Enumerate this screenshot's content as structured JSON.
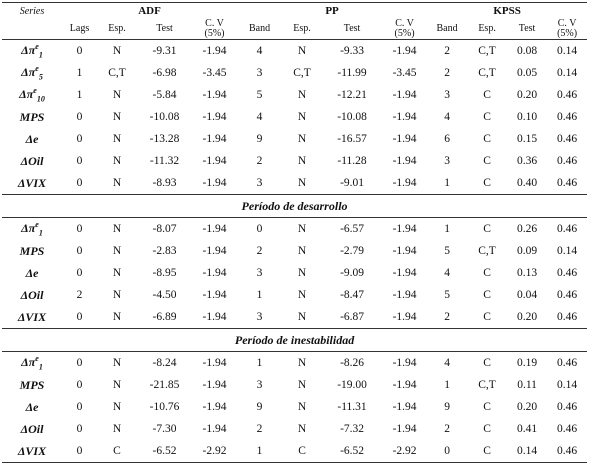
{
  "header": {
    "series": "Series",
    "groups": [
      "ADF",
      "PP",
      "KPSS"
    ],
    "columns": [
      "Lags",
      "Esp.",
      "Test",
      "C. V (5%)",
      "Band",
      "Esp.",
      "Test",
      "C. V (5%)",
      "Band",
      "Esp.",
      "Test",
      "C. V (5%)"
    ]
  },
  "sections": [
    {
      "rows": [
        {
          "series": {
            "base": "Δπ",
            "sup": "e",
            "sub": "1"
          },
          "cells": [
            "0",
            "N",
            "-9.31",
            "-1.94",
            "4",
            "N",
            "-9.33",
            "-1.94",
            "2",
            "C,T",
            "0.08",
            "0.14"
          ]
        },
        {
          "series": {
            "base": "Δπ",
            "sup": "e",
            "sub": "5"
          },
          "cells": [
            "1",
            "C,T",
            "-6.98",
            "-3.45",
            "3",
            "C,T",
            "-11.99",
            "-3.45",
            "2",
            "C,T",
            "0.05",
            "0.14"
          ]
        },
        {
          "series": {
            "base": "Δπ",
            "sup": "e",
            "sub": "10"
          },
          "cells": [
            "1",
            "N",
            "-5.84",
            "-1.94",
            "5",
            "N",
            "-12.21",
            "-1.94",
            "3",
            "C",
            "0.20",
            "0.46"
          ]
        },
        {
          "series": {
            "base": "MPS"
          },
          "cells": [
            "0",
            "N",
            "-10.08",
            "-1.94",
            "4",
            "N",
            "-10.08",
            "-1.94",
            "4",
            "C",
            "0.10",
            "0.46"
          ]
        },
        {
          "series": {
            "base": "Δe"
          },
          "cells": [
            "0",
            "N",
            "-13.28",
            "-1.94",
            "9",
            "N",
            "-16.57",
            "-1.94",
            "6",
            "C",
            "0.15",
            "0.46"
          ]
        },
        {
          "series": {
            "base": "ΔOil"
          },
          "cells": [
            "0",
            "N",
            "-11.32",
            "-1.94",
            "2",
            "N",
            "-11.28",
            "-1.94",
            "3",
            "C",
            "0.36",
            "0.46"
          ]
        },
        {
          "series": {
            "base": "ΔVIX"
          },
          "cells": [
            "0",
            "N",
            "-8.93",
            "-1.94",
            "3",
            "N",
            "-9.01",
            "-1.94",
            "1",
            "C",
            "0.40",
            "0.46"
          ]
        }
      ]
    },
    {
      "title": "Período de desarrollo",
      "rows": [
        {
          "series": {
            "base": "Δπ",
            "sup": "e",
            "sub": "1"
          },
          "cells": [
            "0",
            "N",
            "-8.07",
            "-1.94",
            "0",
            "N",
            "-6.57",
            "-1.94",
            "1",
            "C",
            "0.26",
            "0.46"
          ]
        },
        {
          "series": {
            "base": "MPS"
          },
          "cells": [
            "0",
            "N",
            "-2.83",
            "-1.94",
            "2",
            "N",
            "-2.79",
            "-1.94",
            "5",
            "C,T",
            "0.09",
            "0.14"
          ]
        },
        {
          "series": {
            "base": "Δe"
          },
          "cells": [
            "0",
            "N",
            "-8.95",
            "-1.94",
            "3",
            "N",
            "-9.09",
            "-1.94",
            "4",
            "C",
            "0.13",
            "0.46"
          ]
        },
        {
          "series": {
            "base": "ΔOil"
          },
          "cells": [
            "2",
            "N",
            "-4.50",
            "-1.94",
            "1",
            "N",
            "-8.47",
            "-1.94",
            "5",
            "C",
            "0.04",
            "0.46"
          ]
        },
        {
          "series": {
            "base": "ΔVIX"
          },
          "cells": [
            "0",
            "N",
            "-6.89",
            "-1.94",
            "3",
            "N",
            "-6.87",
            "-1.94",
            "2",
            "C",
            "0.20",
            "0.46"
          ]
        }
      ]
    },
    {
      "title": "Período de inestabilidad",
      "rows": [
        {
          "series": {
            "base": "Δπ",
            "sup": "e",
            "sub": "1"
          },
          "cells": [
            "0",
            "N",
            "-8.24",
            "-1.94",
            "1",
            "N",
            "-8.26",
            "-1.94",
            "4",
            "C",
            "0.19",
            "0.46"
          ]
        },
        {
          "series": {
            "base": "MPS"
          },
          "cells": [
            "0",
            "N",
            "-21.85",
            "-1.94",
            "3",
            "N",
            "-19.00",
            "-1.94",
            "1",
            "C,T",
            "0.11",
            "0.14"
          ]
        },
        {
          "series": {
            "base": "Δe"
          },
          "cells": [
            "0",
            "N",
            "-10.76",
            "-1.94",
            "9",
            "N",
            "-11.31",
            "-1.94",
            "9",
            "C",
            "0.20",
            "0.46"
          ]
        },
        {
          "series": {
            "base": "ΔOil"
          },
          "cells": [
            "0",
            "N",
            "-7.30",
            "-1.94",
            "2",
            "N",
            "-7.32",
            "-1.94",
            "2",
            "C",
            "0.41",
            "0.46"
          ]
        },
        {
          "series": {
            "base": "ΔVIX"
          },
          "cells": [
            "0",
            "C",
            "-6.52",
            "-2.92",
            "1",
            "C",
            "-6.52",
            "-2.92",
            "0",
            "C",
            "0.14",
            "0.46"
          ]
        }
      ]
    }
  ]
}
